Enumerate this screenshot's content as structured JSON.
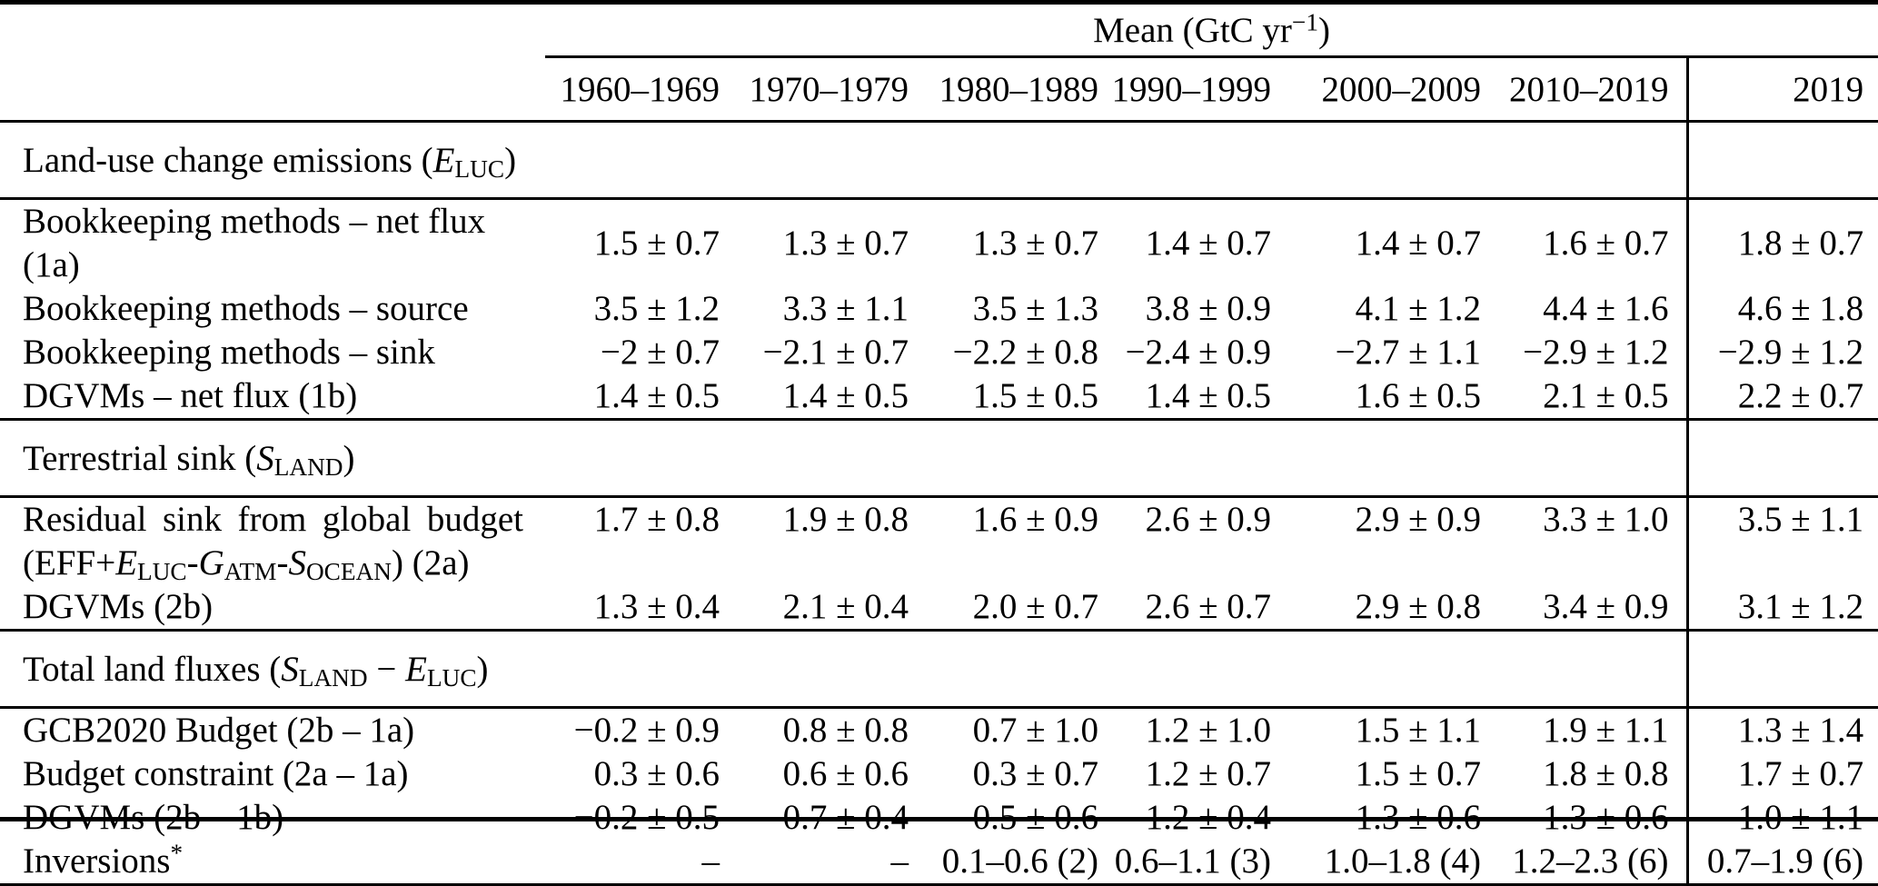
{
  "table": {
    "unit_header_html": "Mean (GtC yr<sup>−1</sup>)",
    "period_headers": [
      "1960–1969",
      "1970–1979",
      "1980–1989",
      "1990–1999",
      "2000–2009",
      "2010–2019",
      "2019"
    ],
    "sections": [
      {
        "title_html": "Land-use change emissions (<i>E</i><sub>LUC</sub>)",
        "rows": [
          {
            "label_html": "Bookkeeping methods – net flux (1a)",
            "values": [
              "1.5 ± 0.7",
              "1.3 ± 0.7",
              "1.3 ± 0.7",
              "1.4 ± 0.7",
              "1.4 ± 0.7",
              "1.6 ± 0.7",
              "1.8 ± 0.7"
            ]
          },
          {
            "label_html": "Bookkeeping methods – source",
            "values": [
              "3.5 ± 1.2",
              "3.3 ± 1.1",
              "3.5 ± 1.3",
              "3.8 ± 0.9",
              "4.1 ± 1.2",
              "4.4 ± 1.6",
              "4.6 ± 1.8"
            ]
          },
          {
            "label_html": "Bookkeeping methods – sink",
            "values": [
              "−2 ± 0.7",
              "−2.1 ± 0.7",
              "−2.2 ± 0.8",
              "−2.4 ± 0.9",
              "−2.7 ± 1.1",
              "−2.9 ± 1.2",
              "−2.9 ± 1.2"
            ]
          },
          {
            "label_html": "DGVMs – net flux (1b)",
            "values": [
              "1.4 ± 0.5",
              "1.4 ± 0.5",
              "1.5 ± 0.5",
              "1.4 ± 0.5",
              "1.6 ± 0.5",
              "2.1 ± 0.5",
              "2.2 ± 0.7"
            ]
          }
        ]
      },
      {
        "title_html": "Terrestrial sink (<i>S</i><sub>LAND</sub>)",
        "rows": [
          {
            "label_lines_html": [
              "Residual sink from global budget",
              "(EFF+<i>E</i><sub>LUC</sub>-<i>G</i><sub>ATM</sub>-<i>S</i><sub>OCEAN</sub>) (2a)"
            ],
            "values": [
              "1.7 ± 0.8",
              "1.9 ± 0.8",
              "1.6 ± 0.9",
              "2.6 ± 0.9",
              "2.9 ± 0.9",
              "3.3 ± 1.0",
              "3.5 ± 1.1"
            ]
          },
          {
            "label_html": "DGVMs (2b)",
            "values": [
              "1.3 ± 0.4",
              "2.1 ± 0.4",
              "2.0 ± 0.7",
              "2.6 ± 0.7",
              "2.9 ± 0.8",
              "3.4 ± 0.9",
              "3.1 ± 1.2"
            ]
          }
        ]
      },
      {
        "title_html": "Total land fluxes (<i>S</i><sub>LAND</sub> − <i>E</i><sub>LUC</sub>)",
        "rows": [
          {
            "label_html": "GCB2020 Budget (2b – 1a)",
            "values": [
              "−0.2 ± 0.9",
              "0.8 ± 0.8",
              "0.7 ± 1.0",
              "1.2 ± 1.0",
              "1.5 ± 1.1",
              "1.9 ± 1.1",
              "1.3 ± 1.4"
            ]
          },
          {
            "label_html": "Budget constraint (2a – 1a)",
            "values": [
              "0.3 ± 0.6",
              "0.6 ± 0.6",
              "0.3 ± 0.7",
              "1.2 ± 0.7",
              "1.5 ± 0.7",
              "1.8 ± 0.8",
              "1.7 ± 0.7"
            ]
          },
          {
            "label_html": "DGVMs (2b – 1b)",
            "values": [
              "−0.2 ± 0.5",
              "0.7 ± 0.4",
              "0.5 ± 0.6",
              "1.2 ± 0.4",
              "1.3 ± 0.6",
              "1.3 ± 0.6",
              "1.0 ± 1.1"
            ]
          },
          {
            "label_html": "Inversions<sup>*</sup>",
            "values": [
              "–",
              "–",
              "0.1–0.6 (2)",
              "0.6–1.1 (3)",
              "1.0–1.8 (4)",
              "1.2–2.3 (6)",
              "0.7–1.9 (6)"
            ]
          }
        ]
      }
    ],
    "colors": {
      "text": "#000000",
      "rule": "#000000",
      "background": "#ffffff"
    }
  }
}
